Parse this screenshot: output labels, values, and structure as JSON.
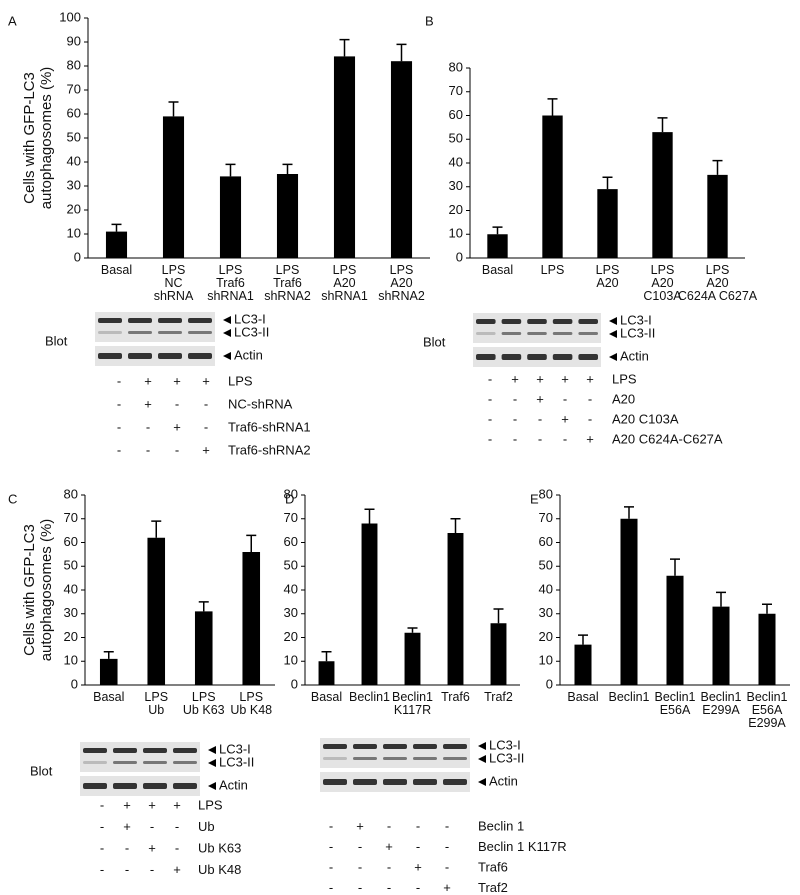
{
  "chart_data": [
    {
      "type": "bar",
      "panel_label": "A",
      "y_label": "Cells with GFP-LC3\nautophagosomes (%)",
      "categories": [
        "Basal",
        "LPS\nNC\nshRNA",
        "LPS\nTraf6\nshRNA1",
        "LPS\nTraf6\nshRNA2",
        "LPS\nA20\nshRNA1",
        "LPS\nA20\nshRNA2"
      ],
      "values": [
        11,
        59,
        34,
        35,
        84,
        82
      ],
      "errors": [
        3,
        6,
        5,
        4,
        7,
        7
      ],
      "color": "#000000",
      "ylim": [
        0,
        100
      ],
      "yticks": [
        0,
        10,
        20,
        30,
        40,
        50,
        60,
        70,
        80,
        90,
        100
      ],
      "blot": {
        "label": "Blot",
        "bands": [
          "LC3-I",
          "LC3-II",
          "Actin"
        ],
        "treatments": [
          {
            "name": "LPS",
            "signs": [
              "-",
              "+",
              "+",
              "+"
            ]
          },
          {
            "name": "NC-shRNA",
            "signs": [
              "-",
              "+",
              "-",
              "-"
            ]
          },
          {
            "name": "Traf6-shRNA1",
            "signs": [
              "-",
              "-",
              "+",
              "-"
            ]
          },
          {
            "name": "Traf6-shRNA2",
            "signs": [
              "-",
              "-",
              "-",
              "+"
            ]
          }
        ]
      }
    },
    {
      "type": "bar",
      "panel_label": "B",
      "categories": [
        "Basal",
        "LPS",
        "LPS\nA20",
        "LPS\nA20\nC103A",
        "LPS\nA20\nC624A C627A"
      ],
      "values": [
        10,
        60,
        29,
        53,
        35
      ],
      "errors": [
        3,
        7,
        5,
        6,
        6
      ],
      "color": "#000000",
      "ylim": [
        0,
        80
      ],
      "yticks": [
        0,
        10,
        20,
        30,
        40,
        50,
        60,
        70,
        80
      ],
      "blot": {
        "label": "Blot",
        "bands": [
          "LC3-I",
          "LC3-II",
          "Actin"
        ],
        "treatments": [
          {
            "name": "LPS",
            "signs": [
              "-",
              "+",
              "+",
              "+",
              "+"
            ]
          },
          {
            "name": "A20",
            "signs": [
              "-",
              "-",
              "+",
              "-",
              "-"
            ]
          },
          {
            "name": "A20 C103A",
            "signs": [
              "-",
              "-",
              "-",
              "+",
              "-"
            ]
          },
          {
            "name": "A20 C624A-C627A",
            "signs": [
              "-",
              "-",
              "-",
              "-",
              "+"
            ]
          }
        ]
      }
    },
    {
      "type": "bar",
      "panel_label": "C",
      "y_label": "Cells with GFP-LC3\nautophagosomes (%)",
      "categories": [
        "Basal",
        "LPS\nUb",
        "LPS\nUb K63",
        "LPS\nUb K48"
      ],
      "values": [
        11,
        62,
        31,
        56
      ],
      "errors": [
        3,
        7,
        4,
        7
      ],
      "color": "#000000",
      "ylim": [
        0,
        80
      ],
      "yticks": [
        0,
        10,
        20,
        30,
        40,
        50,
        60,
        70,
        80
      ],
      "blot": {
        "label": "Blot",
        "bands": [
          "LC3-I",
          "LC3-II",
          "Actin"
        ],
        "treatments": [
          {
            "name": "LPS",
            "signs": [
              "-",
              "+",
              "+",
              "+"
            ]
          },
          {
            "name": "Ub",
            "signs": [
              "-",
              "+",
              "-",
              "-"
            ]
          },
          {
            "name": "Ub K63",
            "signs": [
              "-",
              "-",
              "+",
              "-"
            ]
          },
          {
            "name": "Ub K48",
            "signs": [
              "-",
              "-",
              "-",
              "+"
            ]
          }
        ]
      }
    },
    {
      "type": "bar",
      "panel_label": "D",
      "categories": [
        "Basal",
        "Beclin1",
        "Beclin1\nK117R",
        "Traf6",
        "Traf2"
      ],
      "values": [
        10,
        68,
        22,
        64,
        26
      ],
      "errors": [
        4,
        6,
        2,
        6,
        6
      ],
      "color": "#000000",
      "ylim": [
        0,
        80
      ],
      "yticks": [
        0,
        10,
        20,
        30,
        40,
        50,
        60,
        70,
        80
      ],
      "blot": {
        "bands": [
          "LC3-I",
          "LC3-II",
          "Actin"
        ],
        "treatments": [
          {
            "name": "Beclin 1",
            "signs": [
              "-",
              "+",
              "-",
              "-",
              "-"
            ]
          },
          {
            "name": "Beclin 1 K117R",
            "signs": [
              "-",
              "-",
              "+",
              "-",
              "-"
            ]
          },
          {
            "name": "Traf6",
            "signs": [
              "-",
              "-",
              "-",
              "+",
              "-"
            ]
          },
          {
            "name": "Traf2",
            "signs": [
              "-",
              "-",
              "-",
              "-",
              "+"
            ]
          }
        ]
      }
    },
    {
      "type": "bar",
      "panel_label": "E",
      "categories": [
        "Basal",
        "Beclin1",
        "Beclin1\nE56A",
        "Beclin1\nE299A",
        "Beclin1\nE56A\nE299A"
      ],
      "values": [
        17,
        70,
        46,
        33,
        30
      ],
      "errors": [
        4,
        5,
        7,
        6,
        4
      ],
      "color": "#000000",
      "ylim": [
        0,
        80
      ],
      "yticks": [
        0,
        10,
        20,
        30,
        40,
        50,
        60,
        70,
        80
      ]
    }
  ]
}
